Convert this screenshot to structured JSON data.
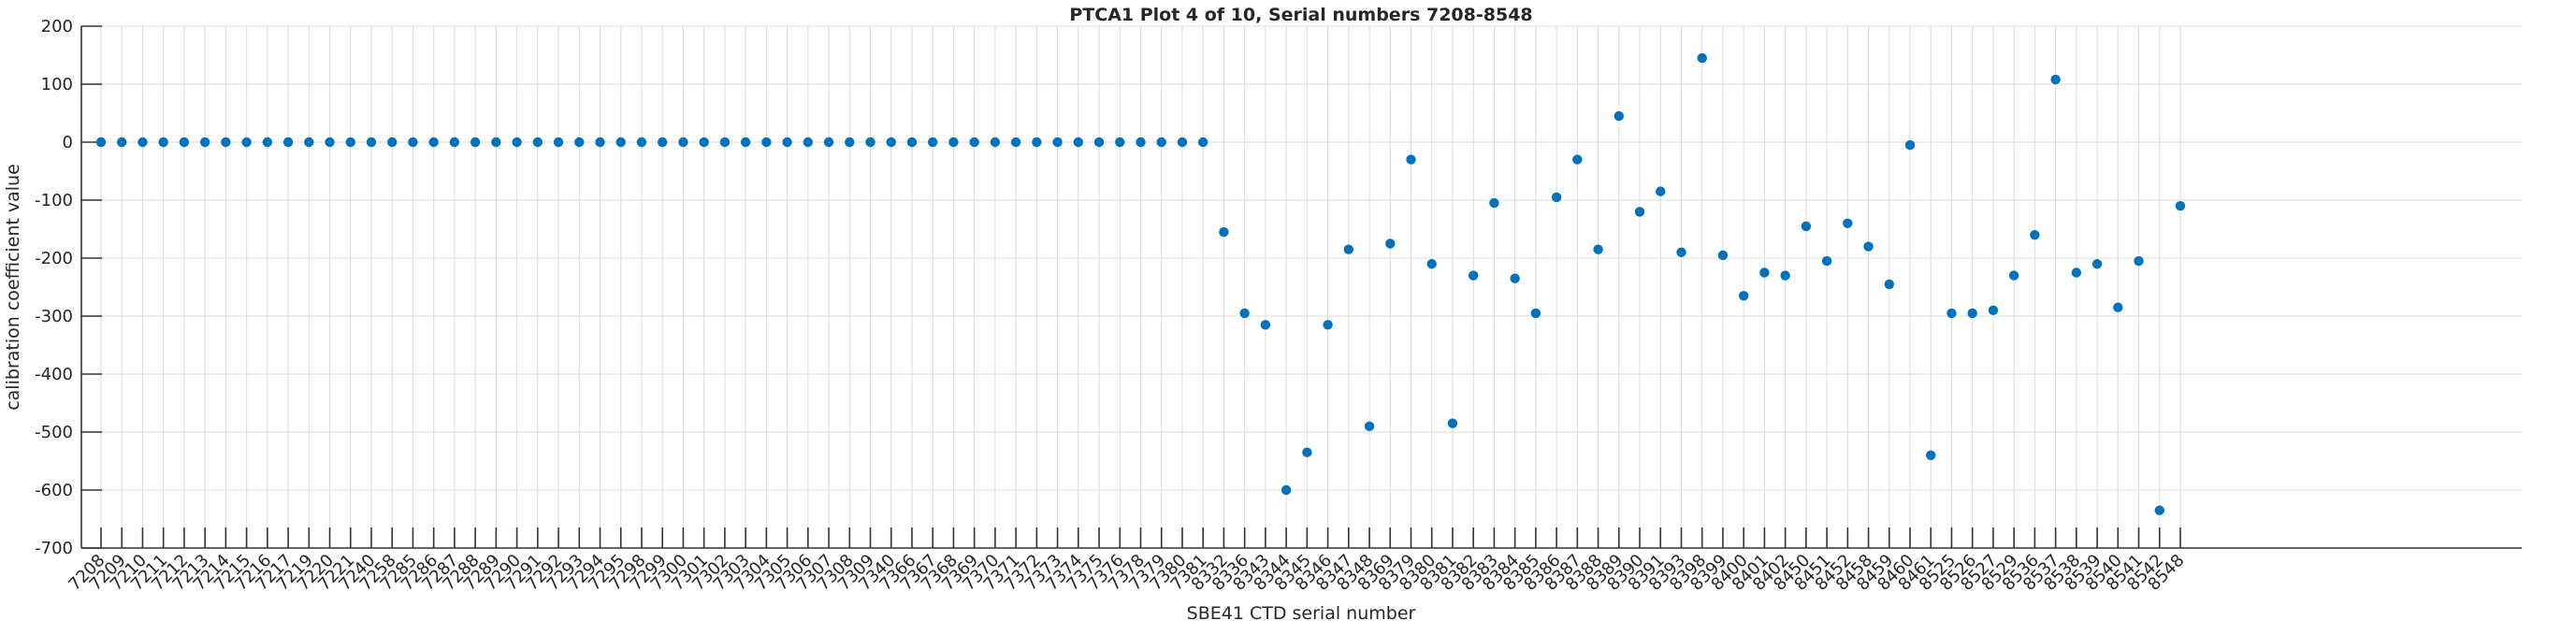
{
  "chart_data": {
    "type": "scatter",
    "title": "PTCA1 Plot 4 of 10, Serial numbers 7208-8548",
    "xlabel": "SBE41 CTD serial number",
    "ylabel": "calibration coefficient value",
    "ylim": [
      -700,
      200
    ],
    "ytick_interval": 100,
    "ytick_labels": [
      "200",
      "100",
      "0",
      "-100",
      "-200",
      "-300",
      "-400",
      "-500",
      "-600",
      "-700"
    ],
    "grid": true,
    "legend_position": "none",
    "marker": "filled-circle",
    "marker_color": "#0072BD",
    "grid_color": "#dcdcdc",
    "axis_color": "#333333",
    "text_color": "#262626",
    "categories": [
      "7208",
      "7209",
      "7210",
      "7211",
      "7212",
      "7213",
      "7214",
      "7215",
      "7216",
      "7217",
      "7219",
      "7220",
      "7221",
      "7240",
      "7258",
      "7285",
      "7286",
      "7287",
      "7288",
      "7289",
      "7290",
      "7291",
      "7292",
      "7293",
      "7294",
      "7295",
      "7298",
      "7299",
      "7300",
      "7301",
      "7302",
      "7303",
      "7304",
      "7305",
      "7306",
      "7307",
      "7308",
      "7309",
      "7340",
      "7366",
      "7367",
      "7368",
      "7369",
      "7370",
      "7371",
      "7372",
      "7373",
      "7374",
      "7375",
      "7376",
      "7378",
      "7379",
      "7380",
      "7381",
      "8332",
      "8336",
      "8343",
      "8344",
      "8345",
      "8346",
      "8347",
      "8348",
      "8369",
      "8379",
      "8380",
      "8381",
      "8382",
      "8383",
      "8384",
      "8385",
      "8386",
      "8387",
      "8388",
      "8389",
      "8390",
      "8391",
      "8393",
      "8398",
      "8399",
      "8400",
      "8401",
      "8402",
      "8450",
      "8451",
      "8452",
      "8458",
      "8459",
      "8460",
      "8461",
      "8525",
      "8526",
      "8527",
      "8529",
      "8536",
      "8537",
      "8538",
      "8539",
      "8540",
      "8541",
      "8542",
      "8548"
    ],
    "values": [
      0,
      0,
      0,
      0,
      0,
      0,
      0,
      0,
      0,
      0,
      0,
      0,
      0,
      0,
      0,
      0,
      0,
      0,
      0,
      0,
      0,
      0,
      0,
      0,
      0,
      0,
      0,
      0,
      0,
      0,
      0,
      0,
      0,
      0,
      0,
      0,
      0,
      0,
      0,
      0,
      0,
      0,
      0,
      0,
      0,
      0,
      0,
      0,
      0,
      0,
      0,
      0,
      0,
      0,
      -155,
      -295,
      -315,
      -600,
      -535,
      -315,
      -185,
      -490,
      -175,
      -30,
      -210,
      -485,
      -230,
      -105,
      -235,
      -295,
      -95,
      -30,
      -185,
      45,
      -120,
      -85,
      -190,
      145,
      -195,
      -265,
      -225,
      -230,
      -145,
      -205,
      -140,
      -180,
      -245,
      -5,
      -540,
      -295,
      -295,
      -290,
      -230,
      -160,
      108,
      -225,
      -210,
      -285,
      -205,
      -635,
      -110
    ]
  }
}
